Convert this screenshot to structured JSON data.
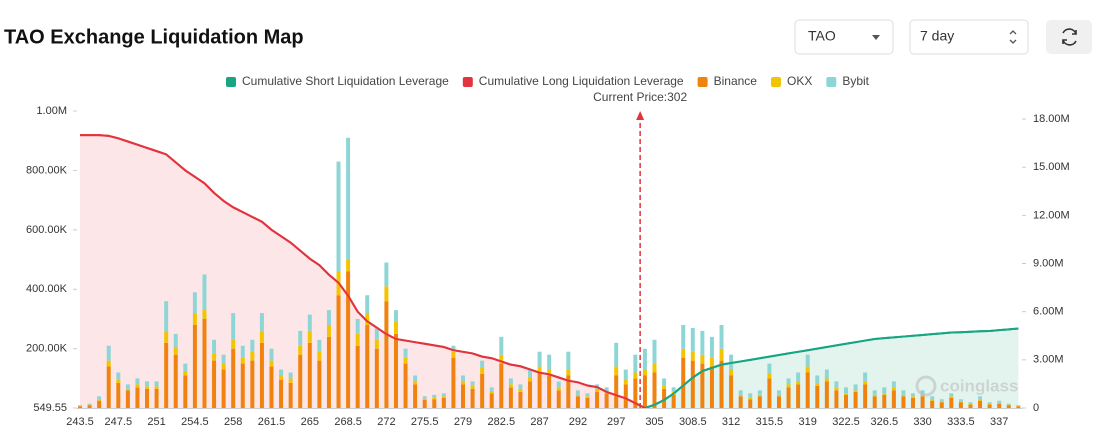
{
  "controls": {
    "coin": "TAO",
    "period": "7 day"
  },
  "chart_data": {
    "type": "bar",
    "title": "TAO Exchange Liquidation Map",
    "annotation": {
      "label": "Current Price:302",
      "value": 302
    },
    "watermark": "coinglass",
    "categories": [
      "243.5",
      null,
      null,
      null,
      "247.5",
      null,
      null,
      null,
      "251",
      null,
      null,
      null,
      "254.5",
      null,
      null,
      null,
      "258",
      null,
      null,
      null,
      "261.5",
      null,
      null,
      null,
      "265",
      null,
      null,
      null,
      "268.5",
      null,
      null,
      null,
      "272",
      null,
      null,
      null,
      "275.5",
      null,
      null,
      null,
      "279",
      null,
      null,
      null,
      "282.5",
      null,
      null,
      null,
      "287",
      null,
      null,
      null,
      "292",
      null,
      null,
      null,
      "297",
      null,
      null,
      null,
      "305",
      null,
      null,
      null,
      "308.5",
      null,
      null,
      null,
      "312",
      null,
      null,
      null,
      "315.5",
      null,
      null,
      null,
      "319",
      null,
      null,
      null,
      "322.5",
      null,
      null,
      null,
      "326.5",
      null,
      null,
      null,
      "330",
      null,
      null,
      null,
      "333.5",
      null,
      null,
      null,
      "337",
      null,
      null
    ],
    "series": [
      {
        "name": "Cumulative Short Liquidation Leverage",
        "type": "line",
        "axis": "y2",
        "color": "#17a582",
        "fill": "#e3f4ef",
        "values": [
          null,
          null,
          null,
          null,
          null,
          null,
          null,
          null,
          null,
          null,
          null,
          null,
          null,
          null,
          null,
          null,
          null,
          null,
          null,
          null,
          null,
          null,
          null,
          null,
          null,
          null,
          null,
          null,
          null,
          null,
          null,
          null,
          null,
          null,
          null,
          null,
          null,
          null,
          null,
          null,
          null,
          null,
          null,
          null,
          null,
          null,
          null,
          null,
          null,
          null,
          null,
          null,
          null,
          null,
          null,
          null,
          null,
          null,
          null,
          0,
          200000,
          500000,
          900000,
          1400000,
          1900000,
          2300000,
          2500000,
          2700000,
          2800000,
          2900000,
          3000000,
          3100000,
          3200000,
          3300000,
          3400000,
          3500000,
          3600000,
          3700000,
          3800000,
          3900000,
          4000000,
          4100000,
          4200000,
          4300000,
          4350000,
          4400000,
          4450000,
          4500000,
          4550000,
          4600000,
          4650000,
          4700000,
          4720000,
          4750000,
          4780000,
          4800000,
          4850000,
          4900000,
          4950000
        ]
      },
      {
        "name": "Cumulative Long Liquidation Leverage",
        "type": "line",
        "axis": "y2",
        "color": "#e2343d",
        "fill": "#fde6e8",
        "values": [
          17000000,
          17000000,
          17000000,
          16950000,
          16800000,
          16600000,
          16400000,
          16200000,
          16000000,
          15800000,
          15300000,
          14800000,
          14400000,
          14000000,
          13400000,
          12900000,
          12500000,
          12200000,
          11900000,
          11600000,
          11100000,
          10700000,
          10300000,
          9800000,
          9300000,
          8900000,
          8300000,
          7800000,
          7000000,
          6000000,
          5400000,
          5000000,
          4600000,
          4300000,
          4200000,
          4100000,
          4000000,
          3900000,
          3800000,
          3600000,
          3500000,
          3400000,
          3200000,
          3100000,
          2900000,
          2700000,
          2600000,
          2400000,
          2200000,
          2100000,
          1900000,
          1700000,
          1600000,
          1400000,
          1300000,
          1000000,
          800000,
          600000,
          300000,
          0,
          null,
          null,
          null,
          null,
          null,
          null,
          null,
          null,
          null,
          null,
          null,
          null,
          null,
          null,
          null,
          null,
          null,
          null,
          null,
          null,
          null,
          null,
          null,
          null,
          null,
          null,
          null,
          null,
          null,
          null,
          null,
          null,
          null,
          null,
          null,
          null,
          null,
          null,
          null
        ]
      },
      {
        "name": "Binance",
        "type": "bar",
        "color": "#f0820f",
        "values": [
          6000,
          10000,
          25000,
          140000,
          85000,
          60000,
          70000,
          65000,
          65000,
          220000,
          180000,
          110000,
          280000,
          300000,
          160000,
          130000,
          200000,
          150000,
          160000,
          220000,
          140000,
          95000,
          85000,
          180000,
          220000,
          160000,
          240000,
          380000,
          460000,
          210000,
          280000,
          200000,
          360000,
          250000,
          150000,
          80000,
          28000,
          30000,
          35000,
          170000,
          80000,
          65000,
          115000,
          50000,
          150000,
          70000,
          55000,
          90000,
          120000,
          110000,
          60000,
          110000,
          40000,
          35000,
          55000,
          50000,
          110000,
          80000,
          100000,
          110000,
          120000,
          65000,
          45000,
          170000,
          160000,
          150000,
          140000,
          160000,
          110000,
          40000,
          30000,
          40000,
          100000,
          40000,
          70000,
          80000,
          120000,
          75000,
          90000,
          60000,
          45000,
          55000,
          80000,
          40000,
          45000,
          60000,
          40000,
          35000,
          40000,
          25000,
          20000,
          35000,
          20000,
          12000,
          25000,
          12000,
          15000,
          10000,
          6000
        ]
      },
      {
        "name": "OKX",
        "type": "bar",
        "color": "#f5c400",
        "values": [
          1000,
          2000,
          5000,
          20000,
          10000,
          5000,
          10000,
          8000,
          8000,
          40000,
          25000,
          15000,
          40000,
          30000,
          25000,
          20000,
          30000,
          20000,
          30000,
          40000,
          20000,
          15000,
          15000,
          30000,
          40000,
          30000,
          40000,
          80000,
          40000,
          40000,
          40000,
          30000,
          50000,
          40000,
          20000,
          10000,
          4000,
          5000,
          5000,
          20000,
          10000,
          10000,
          20000,
          8000,
          30000,
          10000,
          10000,
          15000,
          20000,
          20000,
          10000,
          20000,
          5000,
          5000,
          10000,
          5000,
          30000,
          15000,
          20000,
          20000,
          30000,
          10000,
          10000,
          30000,
          30000,
          30000,
          30000,
          40000,
          20000,
          5000,
          5000,
          5000,
          15000,
          5000,
          10000,
          10000,
          20000,
          10000,
          10000,
          10000,
          5000,
          5000,
          10000,
          5000,
          5000,
          10000,
          5000,
          5000,
          5000,
          5000,
          3000,
          5000,
          3000,
          3000,
          5000,
          3000,
          3000,
          2000,
          1000
        ]
      },
      {
        "name": "Bybit",
        "type": "bar",
        "color": "#8ed6d6",
        "values": [
          3000,
          3000,
          10000,
          50000,
          25000,
          15000,
          20000,
          17000,
          17000,
          100000,
          45000,
          25000,
          70000,
          120000,
          45000,
          30000,
          90000,
          40000,
          40000,
          60000,
          40000,
          20000,
          20000,
          50000,
          55000,
          40000,
          50000,
          370000,
          410000,
          50000,
          60000,
          40000,
          80000,
          40000,
          30000,
          20000,
          8000,
          10000,
          10000,
          20000,
          20000,
          15000,
          25000,
          12000,
          60000,
          20000,
          15000,
          25000,
          50000,
          50000,
          20000,
          60000,
          15000,
          10000,
          15000,
          15000,
          80000,
          35000,
          60000,
          70000,
          80000,
          25000,
          15000,
          80000,
          80000,
          80000,
          70000,
          80000,
          50000,
          15000,
          15000,
          15000,
          35000,
          15000,
          20000,
          30000,
          40000,
          25000,
          30000,
          20000,
          20000,
          20000,
          30000,
          15000,
          20000,
          20000,
          15000,
          10000,
          15000,
          10000,
          7000,
          10000,
          7000,
          5000,
          10000,
          5000,
          7000,
          3000,
          3000
        ]
      }
    ],
    "ylim": [
      549.55,
      1000000
    ],
    "yticks": [
      549.55,
      {
        "value": 200000,
        "label": "200.00K"
      },
      {
        "value": 400000,
        "label": "400.00K"
      },
      {
        "value": 600000,
        "label": "600.00K"
      },
      {
        "value": 800000,
        "label": "800.00K"
      },
      {
        "value": 1000000,
        "label": "1.00M"
      }
    ],
    "y2lim": [
      0,
      18500000
    ],
    "y2ticks": [
      0,
      {
        "value": 3000000,
        "label": "3.00M"
      },
      {
        "value": 6000000,
        "label": "6.00M"
      },
      {
        "value": 9000000,
        "label": "9.00M"
      },
      {
        "value": 12000000,
        "label": "12.00M"
      },
      {
        "value": 15000000,
        "label": "15.00M"
      },
      {
        "value": 18000000,
        "label": "18.00M"
      }
    ],
    "legend": "top"
  }
}
